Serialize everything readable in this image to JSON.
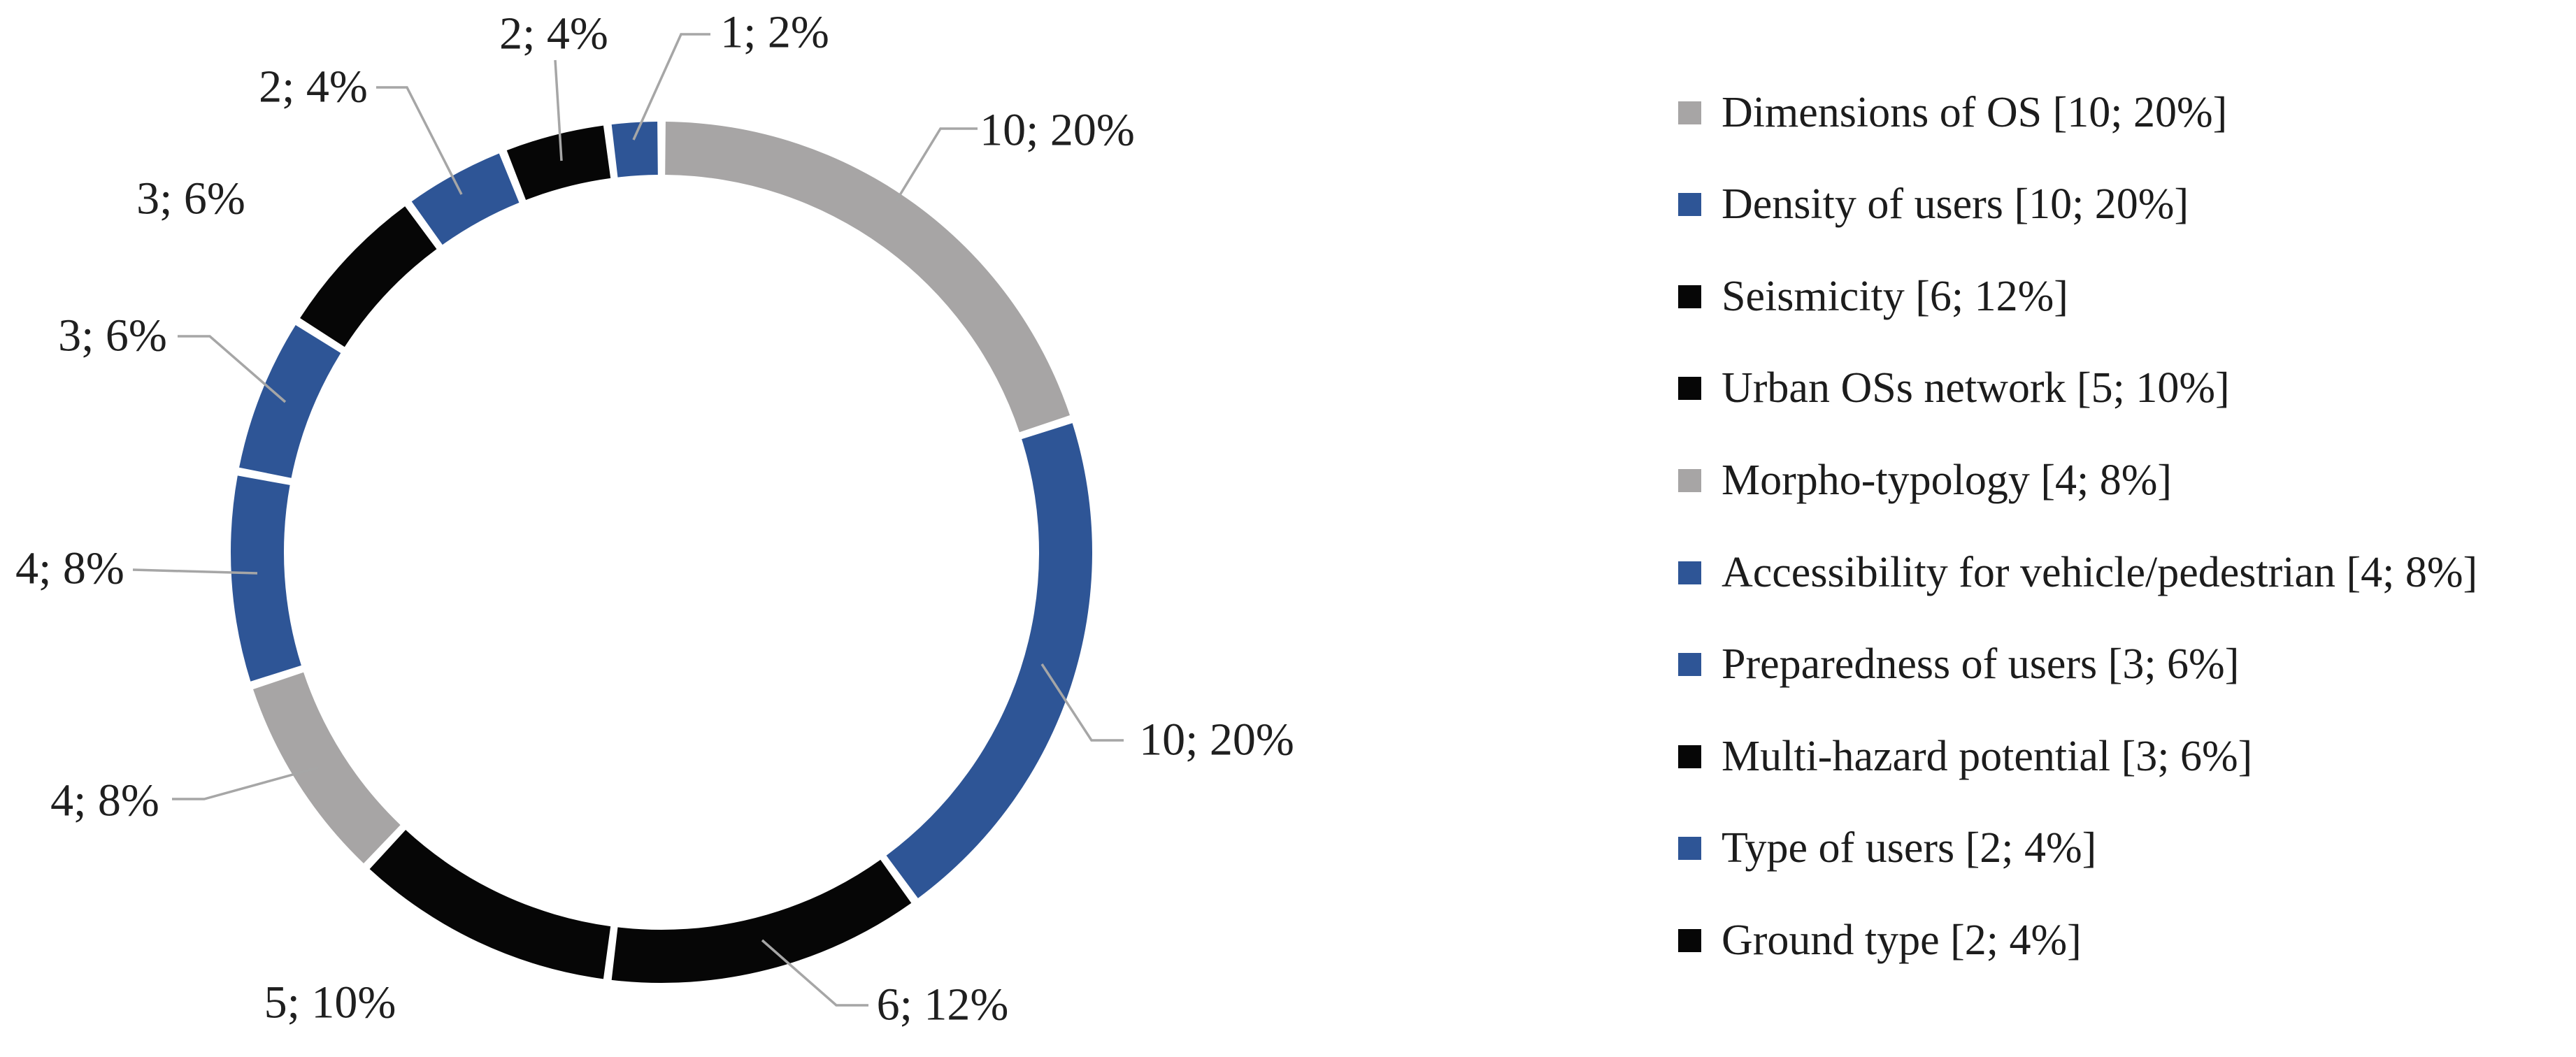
{
  "figure": {
    "description": "Doughnut chart of weighting criteria with data labels (value; percent) and legend",
    "background_color": "#ffffff"
  },
  "palette": {
    "gray": "#a7a5a5",
    "blue": "#2e5596",
    "black": "#060606",
    "leader_line": "#a6a6a6",
    "label_text": "#1f1f1f",
    "legend_text": "#1c1c1c"
  },
  "chart_data": {
    "type": "pie",
    "subtype": "doughnut",
    "title": "",
    "start_angle_deg": 0,
    "direction": "clockwise",
    "total_value": 50,
    "legend_position": "right",
    "segments": [
      {
        "name": "Dimensions of OS",
        "value": 10,
        "percent": 20,
        "color": "gray",
        "data_label": "10; 20%"
      },
      {
        "name": "Density of users",
        "value": 10,
        "percent": 20,
        "color": "blue",
        "data_label": "10; 20%"
      },
      {
        "name": "Seismicity",
        "value": 6,
        "percent": 12,
        "color": "black",
        "data_label": "6; 12%"
      },
      {
        "name": "Urban OSs network",
        "value": 5,
        "percent": 10,
        "color": "black",
        "data_label": "5; 10%"
      },
      {
        "name": "Morpho-typology",
        "value": 4,
        "percent": 8,
        "color": "gray",
        "data_label": "4; 8%"
      },
      {
        "name": "Accessibility for vehicle/pedestrian",
        "value": 4,
        "percent": 8,
        "color": "blue",
        "data_label": "4; 8%"
      },
      {
        "name": "Preparedness of users",
        "value": 3,
        "percent": 6,
        "color": "blue",
        "data_label": "3; 6%"
      },
      {
        "name": "Multi-hazard potential",
        "value": 3,
        "percent": 6,
        "color": "black",
        "data_label": "3; 6%"
      },
      {
        "name": "Type of users",
        "value": 2,
        "percent": 4,
        "color": "blue",
        "data_label": "2; 4%"
      },
      {
        "name": "Ground type",
        "value": 2,
        "percent": 4,
        "color": "black",
        "data_label": "2; 4%"
      },
      {
        "name": "",
        "value": 1,
        "percent": 2,
        "color": "blue",
        "data_label": "1; 2%"
      }
    ]
  },
  "legend": {
    "items": [
      {
        "label": "Dimensions of OS [10; 20%]",
        "color": "gray"
      },
      {
        "label": "Density of users [10; 20%]",
        "color": "blue"
      },
      {
        "label": "Seismicity [6; 12%]",
        "color": "black"
      },
      {
        "label": "Urban OSs network [5; 10%]",
        "color": "black"
      },
      {
        "label": "Morpho-typology [4; 8%]",
        "color": "gray"
      },
      {
        "label": "Accessibility for vehicle/pedestrian [4; 8%]",
        "color": "blue"
      },
      {
        "label": "Preparedness of users [3; 6%]",
        "color": "blue"
      },
      {
        "label": "Multi-hazard potential [3; 6%]",
        "color": "black"
      },
      {
        "label": "Type of users [2; 4%]",
        "color": "blue"
      },
      {
        "label": "Ground type [2; 4%]",
        "color": "black"
      }
    ]
  }
}
